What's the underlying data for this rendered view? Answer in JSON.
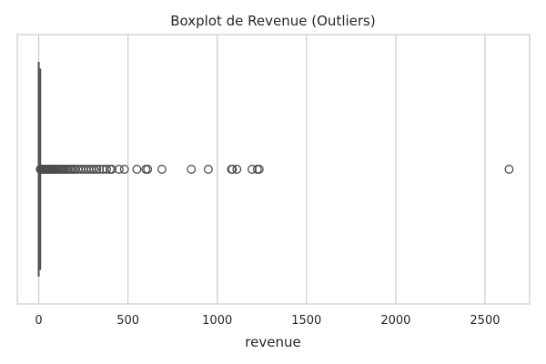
{
  "chart_data": {
    "type": "boxplot",
    "title": "Boxplot de Revenue (Outliers)",
    "xlabel": "revenue",
    "ylabel": "",
    "orientation": "horizontal",
    "xlim": [
      -120,
      2750
    ],
    "xticks": [
      0,
      500,
      1000,
      1500,
      2000,
      2500
    ],
    "grid": "vertical",
    "box_color": "#4c72b0",
    "line_color": "#4d4d4d",
    "box": {
      "whisker_low": 0,
      "q1": 0.5,
      "median": 1.5,
      "q3": 3,
      "whisker_high": 8
    },
    "outliers": [
      9,
      11,
      13,
      15,
      18,
      21,
      24,
      27,
      30,
      33,
      36,
      40,
      44,
      48,
      52,
      56,
      60,
      65,
      70,
      75,
      80,
      86,
      92,
      98,
      105,
      112,
      120,
      128,
      136,
      145,
      155,
      165,
      175,
      185,
      195,
      205,
      220,
      235,
      250,
      265,
      280,
      295,
      310,
      325,
      340,
      360,
      380,
      400,
      410,
      450,
      480,
      550,
      600,
      610,
      690,
      855,
      950,
      1080,
      1085,
      1110,
      1195,
      1225,
      1235,
      2635
    ]
  }
}
